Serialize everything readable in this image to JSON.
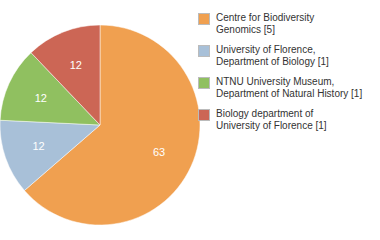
{
  "chart_data": {
    "type": "pie",
    "categories": [
      "Centre for Biodiversity\nGenomics [5]",
      "University of Florence,\nDepartment of Biology [1]",
      "NTNU University Museum,\nDepartment of Natural History [1]",
      "Biology department of\nUniversity of Florence [1]"
    ],
    "values": [
      63,
      12,
      12,
      12
    ],
    "colors": [
      "#f0a050",
      "#a8c0d8",
      "#90c060",
      "#cc6655"
    ],
    "data_labels": true,
    "legend": "right"
  }
}
